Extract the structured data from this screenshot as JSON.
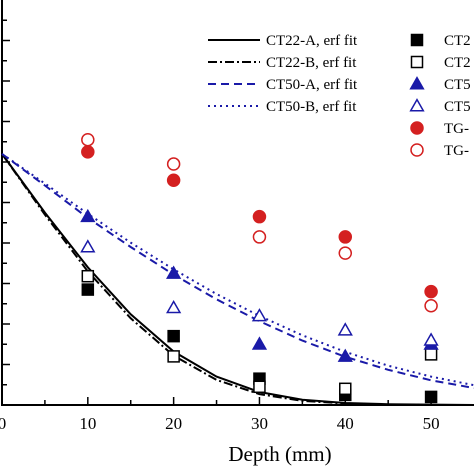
{
  "chart_data": {
    "type": "scatter",
    "title": "",
    "xlabel": "Depth (mm)",
    "ylabel": "",
    "xlim": [
      0,
      55
    ],
    "ylim": [
      0,
      1
    ],
    "xticks": [
      0,
      10,
      20,
      30,
      40,
      50
    ],
    "xtick_labels": [
      "0",
      "10",
      "20",
      "30",
      "40",
      "50"
    ],
    "grid": false,
    "legend_position": "top-right",
    "fits": [
      {
        "name": "CT22-A, erf fit",
        "style": "solid",
        "color": "#000000",
        "x": [
          0,
          5,
          10,
          15,
          20,
          25,
          30,
          35,
          40,
          45,
          50,
          55
        ],
        "y": [
          0.62,
          0.475,
          0.34,
          0.224,
          0.132,
          0.07,
          0.032,
          0.013,
          0.005,
          0.002,
          0.001,
          0.0
        ]
      },
      {
        "name": "CT22-B, erf fit",
        "style": "dashdot",
        "color": "#000000",
        "x": [
          0,
          5,
          10,
          15,
          20,
          25,
          30,
          35,
          40,
          45,
          50,
          55
        ],
        "y": [
          0.62,
          0.47,
          0.33,
          0.214,
          0.122,
          0.062,
          0.027,
          0.01,
          0.004,
          0.001,
          0.0,
          0.0
        ]
      },
      {
        "name": "CT50-A, erf fit",
        "style": "dashed",
        "color": "#1a1aa8",
        "x": [
          0,
          5,
          10,
          15,
          20,
          25,
          30,
          35,
          40,
          45,
          50,
          55
        ],
        "y": [
          0.62,
          0.542,
          0.462,
          0.39,
          0.322,
          0.261,
          0.207,
          0.159,
          0.119,
          0.087,
          0.061,
          0.042
        ]
      },
      {
        "name": "CT50-B, erf fit",
        "style": "dotted",
        "color": "#1a1aa8",
        "x": [
          0,
          5,
          10,
          15,
          20,
          25,
          30,
          35,
          40,
          45,
          50,
          55
        ],
        "y": [
          0.62,
          0.547,
          0.472,
          0.401,
          0.335,
          0.274,
          0.22,
          0.172,
          0.131,
          0.097,
          0.07,
          0.049
        ]
      }
    ],
    "series": [
      {
        "name": "CT2",
        "marker": "square",
        "filled": true,
        "color": "#000000",
        "x": [
          10,
          20,
          30,
          40,
          50
        ],
        "y": [
          0.285,
          0.17,
          0.065,
          0.025,
          0.02
        ]
      },
      {
        "name": "CT2",
        "marker": "square",
        "filled": false,
        "color": "#000000",
        "x": [
          10,
          20,
          30,
          40,
          50
        ],
        "y": [
          0.318,
          0.12,
          0.045,
          0.04,
          0.125
        ]
      },
      {
        "name": "CT5",
        "marker": "triangle",
        "filled": true,
        "color": "#1a1aa8",
        "x": [
          10,
          20,
          30,
          40,
          50
        ],
        "y": [
          0.465,
          0.325,
          0.15,
          0.12,
          0.15
        ]
      },
      {
        "name": "CT5",
        "marker": "triangle",
        "filled": false,
        "color": "#1a1aa8",
        "x": [
          10,
          20,
          30,
          40,
          50
        ],
        "y": [
          0.39,
          0.24,
          0.22,
          0.185,
          0.16
        ]
      },
      {
        "name": "TG-",
        "marker": "circle",
        "filled": true,
        "color": "#d42020",
        "x": [
          10,
          20,
          30,
          40,
          50
        ],
        "y": [
          0.625,
          0.555,
          0.465,
          0.415,
          0.28
        ]
      },
      {
        "name": "TG-",
        "marker": "circle",
        "filled": false,
        "color": "#d42020",
        "x": [
          10,
          20,
          30,
          40,
          50
        ],
        "y": [
          0.655,
          0.595,
          0.415,
          0.375,
          0.245
        ]
      }
    ]
  }
}
